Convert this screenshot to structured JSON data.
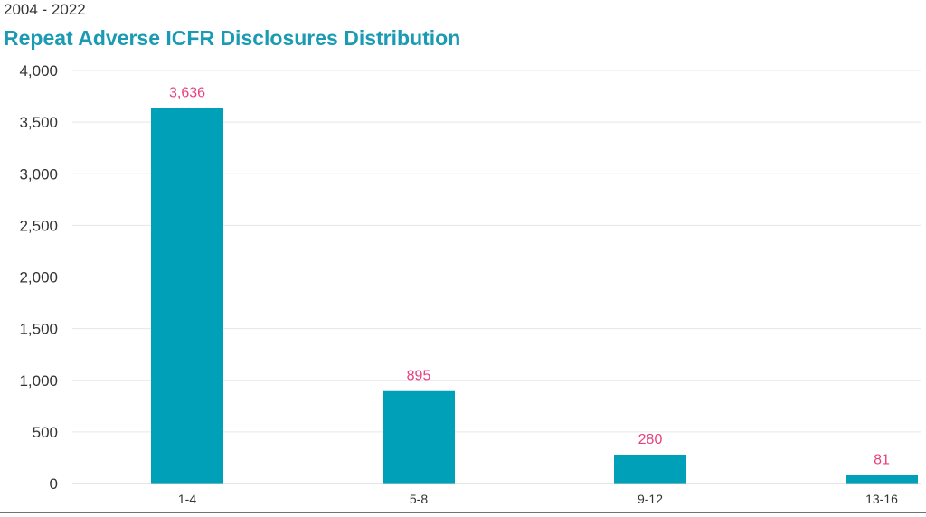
{
  "header": {
    "subtitle": "2004 - 2022",
    "title": "Repeat Adverse ICFR Disclosures Distribution"
  },
  "colors": {
    "bar": "#00a0b8",
    "data_label": "#e8407e",
    "title": "#1a9bb3",
    "gridline": "#e6e6e6"
  },
  "chart_data": {
    "type": "bar",
    "title": "Repeat Adverse ICFR Disclosures Distribution",
    "subtitle": "2004 - 2022",
    "categories": [
      "1-4",
      "5-8",
      "9-12",
      "13-16"
    ],
    "values": [
      3636,
      895,
      280,
      81
    ],
    "data_labels": [
      "3,636",
      "895",
      "280",
      "81"
    ],
    "ylim": [
      0,
      4000
    ],
    "yticks": [
      0,
      500,
      1000,
      1500,
      2000,
      2500,
      3000,
      3500,
      4000
    ],
    "ytick_labels": [
      "0",
      "500",
      "1,000",
      "1,500",
      "2,000",
      "2,500",
      "3,000",
      "3,500",
      "4,000"
    ],
    "grid": true,
    "legend": "none"
  }
}
